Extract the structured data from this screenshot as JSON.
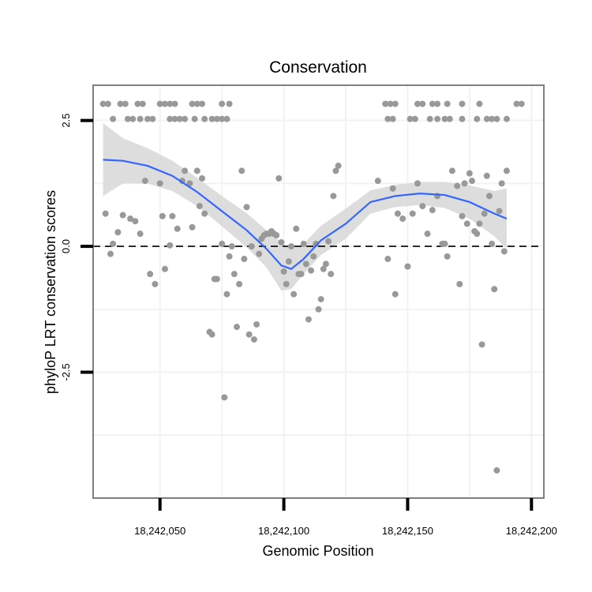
{
  "chart_data": {
    "type": "scatter",
    "title": "Conservation",
    "xlabel": "Genomic Position",
    "ylabel": "phyloP LRT conservation scores",
    "xlim": [
      18242023,
      18242205
    ],
    "ylim": [
      -5.0,
      3.2
    ],
    "x_ticks": [
      18242050,
      18242100,
      18242150,
      18242200
    ],
    "x_tick_labels": [
      "18,242,050",
      "18,242,100",
      "18,242,150",
      "18,242,200"
    ],
    "y_ticks": [
      2.5,
      0.0,
      -2.5
    ],
    "y_tick_labels": [
      "2.5",
      "0.0",
      "-2.5"
    ],
    "reference_line_y": 0.0,
    "grid": true,
    "colors": {
      "points": "#999999",
      "smooth_line": "#3366ff",
      "ribbon": "#d9d9d9",
      "grid": "#f2f2f2",
      "panel_border": "#7f7f7f",
      "reference_line": "#000000"
    },
    "series": [
      {
        "name": "phyloP LRT scores",
        "points": [
          [
            18242027,
            2.83
          ],
          [
            18242029,
            2.83
          ],
          [
            18242034,
            2.83
          ],
          [
            18242036,
            2.83
          ],
          [
            18242041,
            2.83
          ],
          [
            18242043,
            2.83
          ],
          [
            18242050,
            2.83
          ],
          [
            18242052,
            2.83
          ],
          [
            18242054,
            2.83
          ],
          [
            18242056,
            2.83
          ],
          [
            18242063,
            2.83
          ],
          [
            18242065,
            2.83
          ],
          [
            18242067,
            2.83
          ],
          [
            18242075,
            2.83
          ],
          [
            18242078,
            2.83
          ],
          [
            18242031,
            2.53
          ],
          [
            18242037,
            2.53
          ],
          [
            18242039,
            2.53
          ],
          [
            18242042,
            2.53
          ],
          [
            18242045,
            2.53
          ],
          [
            18242047,
            2.53
          ],
          [
            18242054,
            2.53
          ],
          [
            18242056,
            2.53
          ],
          [
            18242058,
            2.53
          ],
          [
            18242060,
            2.53
          ],
          [
            18242064,
            2.53
          ],
          [
            18242068,
            2.53
          ],
          [
            18242071,
            2.53
          ],
          [
            18242073,
            2.53
          ],
          [
            18242075,
            2.53
          ],
          [
            18242077,
            2.53
          ],
          [
            18242141,
            2.83
          ],
          [
            18242143,
            2.83
          ],
          [
            18242145,
            2.83
          ],
          [
            18242154,
            2.83
          ],
          [
            18242156,
            2.83
          ],
          [
            18242160,
            2.83
          ],
          [
            18242162,
            2.83
          ],
          [
            18242166,
            2.83
          ],
          [
            18242172,
            2.83
          ],
          [
            18242179,
            2.83
          ],
          [
            18242194,
            2.83
          ],
          [
            18242196,
            2.83
          ],
          [
            18242142,
            2.53
          ],
          [
            18242144,
            2.53
          ],
          [
            18242151,
            2.53
          ],
          [
            18242153,
            2.53
          ],
          [
            18242159,
            2.53
          ],
          [
            18242162,
            2.53
          ],
          [
            18242165,
            2.53
          ],
          [
            18242167,
            2.53
          ],
          [
            18242172,
            2.53
          ],
          [
            18242178,
            2.53
          ],
          [
            18242182,
            2.53
          ],
          [
            18242184,
            2.53
          ],
          [
            18242186,
            2.53
          ],
          [
            18242190,
            2.53
          ],
          [
            18242028,
            0.65
          ],
          [
            18242030,
            -0.15
          ],
          [
            18242031,
            0.05
          ],
          [
            18242033,
            0.28
          ],
          [
            18242035,
            0.62
          ],
          [
            18242038,
            0.55
          ],
          [
            18242040,
            0.5
          ],
          [
            18242042,
            0.25
          ],
          [
            18242044,
            1.3
          ],
          [
            18242046,
            -0.55
          ],
          [
            18242048,
            -0.75
          ],
          [
            18242050,
            1.25
          ],
          [
            18242051,
            0.6
          ],
          [
            18242052,
            -0.45
          ],
          [
            18242054,
            0.02
          ],
          [
            18242055,
            0.6
          ],
          [
            18242057,
            0.35
          ],
          [
            18242059,
            1.3
          ],
          [
            18242060,
            1.5
          ],
          [
            18242062,
            1.25
          ],
          [
            18242063,
            0.38
          ],
          [
            18242065,
            1.5
          ],
          [
            18242066,
            0.8
          ],
          [
            18242067,
            1.35
          ],
          [
            18242068,
            0.65
          ],
          [
            18242070,
            -1.7
          ],
          [
            18242071,
            -1.75
          ],
          [
            18242072,
            -0.65
          ],
          [
            18242073,
            -0.65
          ],
          [
            18242075,
            0.05
          ],
          [
            18242076,
            -3.0
          ],
          [
            18242077,
            -0.95
          ],
          [
            18242078,
            -0.2
          ],
          [
            18242079,
            0.0
          ],
          [
            18242080,
            -0.55
          ],
          [
            18242081,
            -1.6
          ],
          [
            18242082,
            -0.75
          ],
          [
            18242083,
            1.5
          ],
          [
            18242084,
            -0.25
          ],
          [
            18242085,
            0.78
          ],
          [
            18242086,
            -1.75
          ],
          [
            18242087,
            0.0
          ],
          [
            18242088,
            -1.85
          ],
          [
            18242089,
            -1.55
          ],
          [
            18242090,
            -0.15
          ],
          [
            18242091,
            0.15
          ],
          [
            18242092,
            0.22
          ],
          [
            18242093,
            0.25
          ],
          [
            18242094,
            0.25
          ],
          [
            18242095,
            0.3
          ],
          [
            18242096,
            0.25
          ],
          [
            18242097,
            0.22
          ],
          [
            18242098,
            1.35
          ],
          [
            18242099,
            0.08
          ],
          [
            18242100,
            -0.5
          ],
          [
            18242101,
            -0.75
          ],
          [
            18242102,
            -0.3
          ],
          [
            18242103,
            0.0
          ],
          [
            18242104,
            -0.95
          ],
          [
            18242105,
            0.35
          ],
          [
            18242106,
            -0.55
          ],
          [
            18242107,
            -0.55
          ],
          [
            18242108,
            0.05
          ],
          [
            18242109,
            -0.35
          ],
          [
            18242110,
            -1.45
          ],
          [
            18242111,
            -0.48
          ],
          [
            18242112,
            -0.2
          ],
          [
            18242113,
            0.05
          ],
          [
            18242114,
            -1.25
          ],
          [
            18242115,
            -1.05
          ],
          [
            18242116,
            -0.45
          ],
          [
            18242117,
            -0.35
          ],
          [
            18242118,
            0.1
          ],
          [
            18242119,
            -0.55
          ],
          [
            18242120,
            1.0
          ],
          [
            18242121,
            1.5
          ],
          [
            18242122,
            1.6
          ],
          [
            18242138,
            1.3
          ],
          [
            18242142,
            -0.25
          ],
          [
            18242144,
            1.15
          ],
          [
            18242145,
            -0.95
          ],
          [
            18242146,
            0.65
          ],
          [
            18242148,
            0.55
          ],
          [
            18242150,
            -0.4
          ],
          [
            18242152,
            0.65
          ],
          [
            18242154,
            1.25
          ],
          [
            18242156,
            0.8
          ],
          [
            18242158,
            0.25
          ],
          [
            18242160,
            0.72
          ],
          [
            18242162,
            1.0
          ],
          [
            18242164,
            0.05
          ],
          [
            18242165,
            0.05
          ],
          [
            18242166,
            -0.2
          ],
          [
            18242168,
            1.5
          ],
          [
            18242170,
            1.2
          ],
          [
            18242171,
            -0.75
          ],
          [
            18242172,
            0.6
          ],
          [
            18242173,
            1.25
          ],
          [
            18242174,
            0.45
          ],
          [
            18242175,
            1.45
          ],
          [
            18242176,
            1.3
          ],
          [
            18242177,
            0.3
          ],
          [
            18242178,
            0.25
          ],
          [
            18242179,
            0.45
          ],
          [
            18242180,
            -1.95
          ],
          [
            18242181,
            0.65
          ],
          [
            18242182,
            1.4
          ],
          [
            18242183,
            1.0
          ],
          [
            18242184,
            0.05
          ],
          [
            18242185,
            -0.85
          ],
          [
            18242186,
            -4.45
          ],
          [
            18242187,
            0.7
          ],
          [
            18242188,
            1.25
          ],
          [
            18242189,
            -0.1
          ],
          [
            18242190,
            1.5
          ]
        ]
      }
    ],
    "smooth_fit": [
      [
        18242027,
        1.72
      ],
      [
        18242035,
        1.7
      ],
      [
        18242045,
        1.6
      ],
      [
        18242055,
        1.4
      ],
      [
        18242065,
        1.08
      ],
      [
        18242075,
        0.7
      ],
      [
        18242085,
        0.32
      ],
      [
        18242093,
        -0.05
      ],
      [
        18242099,
        -0.38
      ],
      [
        18242103,
        -0.45
      ],
      [
        18242108,
        -0.25
      ],
      [
        18242115,
        0.12
      ],
      [
        18242125,
        0.45
      ],
      [
        18242135,
        0.88
      ],
      [
        18242145,
        1.0
      ],
      [
        18242155,
        1.05
      ],
      [
        18242165,
        1.02
      ],
      [
        18242175,
        0.88
      ],
      [
        18242185,
        0.65
      ],
      [
        18242190,
        0.55
      ]
    ],
    "smooth_band": {
      "lower": [
        [
          18242027,
          1.0
        ],
        [
          18242035,
          1.25
        ],
        [
          18242045,
          1.25
        ],
        [
          18242055,
          1.1
        ],
        [
          18242065,
          0.8
        ],
        [
          18242075,
          0.4
        ],
        [
          18242085,
          -0.02
        ],
        [
          18242093,
          -0.42
        ],
        [
          18242099,
          -0.88
        ],
        [
          18242103,
          -0.85
        ],
        [
          18242108,
          -0.55
        ],
        [
          18242115,
          -0.17
        ],
        [
          18242125,
          0.15
        ],
        [
          18242135,
          0.65
        ],
        [
          18242145,
          0.78
        ],
        [
          18242155,
          0.82
        ],
        [
          18242165,
          0.76
        ],
        [
          18242175,
          0.55
        ],
        [
          18242185,
          0.2
        ],
        [
          18242190,
          -0.05
        ]
      ],
      "upper": [
        [
          18242027,
          2.45
        ],
        [
          18242035,
          2.15
        ],
        [
          18242045,
          1.95
        ],
        [
          18242055,
          1.7
        ],
        [
          18242065,
          1.36
        ],
        [
          18242075,
          1.0
        ],
        [
          18242085,
          0.66
        ],
        [
          18242093,
          0.32
        ],
        [
          18242099,
          0.08
        ],
        [
          18242103,
          -0.05
        ],
        [
          18242108,
          0.05
        ],
        [
          18242115,
          0.41
        ],
        [
          18242125,
          0.75
        ],
        [
          18242135,
          1.11
        ],
        [
          18242145,
          1.22
        ],
        [
          18242155,
          1.28
        ],
        [
          18242165,
          1.28
        ],
        [
          18242175,
          1.21
        ],
        [
          18242185,
          1.1
        ],
        [
          18242190,
          1.15
        ]
      ]
    }
  }
}
